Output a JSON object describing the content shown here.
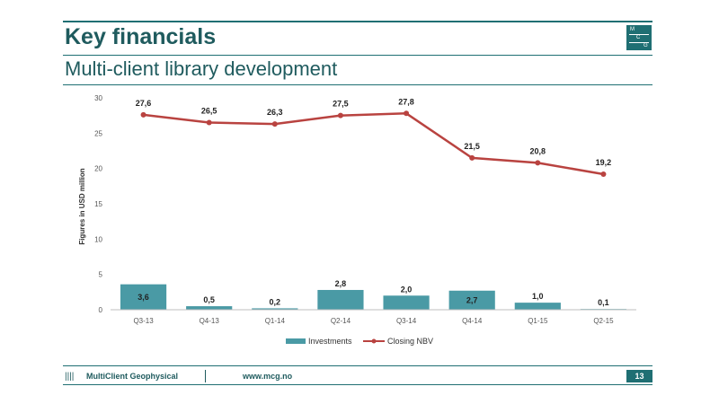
{
  "header": {
    "title": "Key financials",
    "subtitle": "Multi-client library development",
    "logo_letters": [
      "M",
      "C",
      "G"
    ]
  },
  "footer": {
    "bars": "||||",
    "company": "MultiClient Geophysical",
    "url": "www.mcg.no",
    "page_number": "13"
  },
  "colors": {
    "brand": "#1f6f73",
    "bar": "#4a9aa5",
    "line": "#b94340"
  },
  "chart_data": {
    "type": "bar",
    "categories": [
      "Q3-13",
      "Q4-13",
      "Q1-14",
      "Q2-14",
      "Q3-14",
      "Q4-14",
      "Q1-15",
      "Q2-15"
    ],
    "series": [
      {
        "name": "Investments",
        "type": "bar",
        "values": [
          3.6,
          0.5,
          0.2,
          2.8,
          2.0,
          2.7,
          1.0,
          0.1
        ],
        "labels": [
          "3,6",
          "0,5",
          "0,2",
          "2,8",
          "2,0",
          "2,7",
          "1,0",
          "0,1"
        ]
      },
      {
        "name": "Closing NBV",
        "type": "line",
        "values": [
          27.6,
          26.5,
          26.3,
          27.5,
          27.8,
          21.5,
          20.8,
          19.2
        ],
        "labels": [
          "27,6",
          "26,5",
          "26,3",
          "27,5",
          "27,8",
          "21,5",
          "20,8",
          "19,2"
        ]
      }
    ],
    "ylabel": "Figures in USD million",
    "xlabel": "",
    "ylim": [
      0,
      30
    ],
    "yticks": [
      0,
      5,
      10,
      15,
      20,
      25,
      30
    ],
    "grid": false,
    "legend": "bottom"
  }
}
